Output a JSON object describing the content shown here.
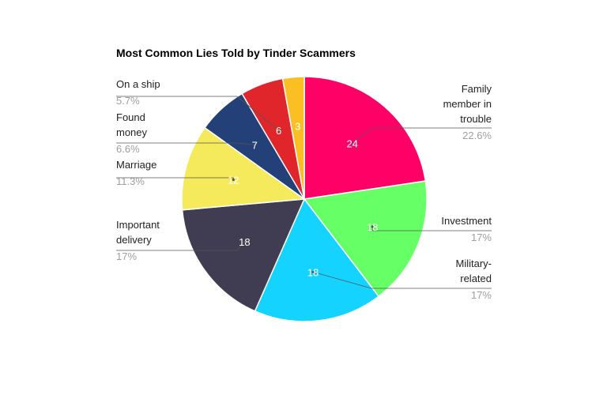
{
  "chart_data": {
    "type": "pie",
    "title": "Most Common Lies Told by Tinder Scammers",
    "slices": [
      {
        "label": "Family member in trouble",
        "label_lines": [
          "Family",
          "member in",
          "trouble"
        ],
        "value": 24,
        "percent": "22.6%",
        "color": "#ff0066",
        "value_color": "#ffffff",
        "side": "right"
      },
      {
        "label": "Investment",
        "label_lines": [
          "Investment"
        ],
        "value": 18,
        "percent": "17%",
        "color": "#66ff66",
        "value_color": "#ffffff",
        "side": "right"
      },
      {
        "label": "Military-related",
        "label_lines": [
          "Military-",
          "related"
        ],
        "value": 18,
        "percent": "17%",
        "color": "#14d4ff",
        "value_color": "#ffffff",
        "side": "right"
      },
      {
        "label": "Important delivery",
        "label_lines": [
          "Important",
          "delivery"
        ],
        "value": 18,
        "percent": "17%",
        "color": "#403c52",
        "value_color": "#ffffff",
        "side": "left"
      },
      {
        "label": "Marriage",
        "label_lines": [
          "Marriage"
        ],
        "value": 12,
        "percent": "11.3%",
        "color": "#f4ea5c",
        "value_color": "#ffffff",
        "side": "left"
      },
      {
        "label": "Found money",
        "label_lines": [
          "Found",
          "money"
        ],
        "value": 7,
        "percent": "6.6%",
        "color": "#234078",
        "value_color": "#ffffff",
        "side": "left"
      },
      {
        "label": "On a ship",
        "label_lines": [
          "On a ship"
        ],
        "value": 6,
        "percent": "5.7%",
        "color": "#e0262b",
        "value_color": "#ffffff",
        "side": "left"
      },
      {
        "label": "",
        "label_lines": [],
        "value": 3,
        "percent": "",
        "color": "#fbbf24",
        "value_color": "#ffffff",
        "side": "none"
      }
    ],
    "legend": "none",
    "start_angle": "12 o'clock, clockwise"
  }
}
